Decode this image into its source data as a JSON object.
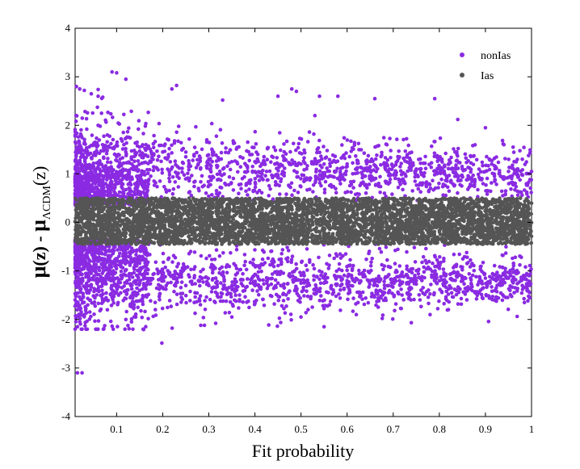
{
  "chart_data": {
    "type": "scatter",
    "title": "",
    "xlabel": "Fit probability",
    "ylabel": {
      "mu": "μ",
      "z1": "(z) - ",
      "mu2": "μ",
      "sub": "ΛCDM",
      "z2": "(z)"
    },
    "xlim": [
      0.01,
      1.0
    ],
    "ylim": [
      -4,
      4
    ],
    "xticks": [
      0.1,
      0.2,
      0.3,
      0.4,
      0.5,
      0.6,
      0.7,
      0.8,
      0.9,
      1
    ],
    "xtick_labels": [
      "0.1",
      "0.2",
      "0.3",
      "0.4",
      "0.5",
      "0.6",
      "0.7",
      "0.8",
      "0.9",
      "1"
    ],
    "yticks": [
      -4,
      -3,
      -2,
      -1,
      0,
      1,
      2,
      3,
      4
    ],
    "ytick_labels": [
      "-4",
      "-3",
      "-2",
      "-1",
      "0",
      "1",
      "2",
      "3",
      "4"
    ],
    "grid": false,
    "legend_position": "top-right",
    "series": [
      {
        "name": "nonIas",
        "color": "#8a2be2",
        "description_of_distribution": "Dense cluster at low fit probability (0.01–0.15) spanning roughly -2 to +2.8; bimodal bands around ±1.2 across all x; sparse outliers up to ~3.1 and down to ~-3.1",
        "points": [
          [
            0.015,
            -3.1
          ],
          [
            0.025,
            -3.1
          ],
          [
            0.09,
            3.1
          ],
          [
            0.1,
            3.08
          ],
          [
            0.12,
            2.95
          ],
          [
            0.02,
            2.75
          ],
          [
            0.03,
            2.72
          ],
          [
            0.045,
            2.65
          ],
          [
            0.06,
            2.6
          ],
          [
            0.07,
            2.58
          ],
          [
            0.23,
            2.82
          ],
          [
            0.22,
            2.75
          ],
          [
            0.33,
            2.52
          ],
          [
            0.45,
            2.6
          ],
          [
            0.48,
            2.75
          ],
          [
            0.49,
            2.7
          ],
          [
            0.53,
            2.2
          ],
          [
            0.54,
            2.6
          ],
          [
            0.58,
            2.6
          ],
          [
            0.66,
            2.55
          ],
          [
            0.79,
            2.55
          ],
          [
            0.84,
            2.12
          ],
          [
            0.9,
            1.95
          ],
          [
            0.94,
            1.6
          ],
          [
            0.96,
            1.55
          ],
          [
            0.98,
            1.3
          ],
          [
            1.0,
            1.05
          ],
          [
            0.995,
            -1.1
          ],
          [
            0.98,
            -1.3
          ],
          [
            0.55,
            -2.15
          ],
          [
            0.015,
            -2.15
          ],
          [
            0.02,
            -2.05
          ],
          [
            0.12,
            -2.0
          ],
          [
            0.35,
            -1.95
          ],
          [
            0.5,
            -1.95
          ],
          [
            0.62,
            -1.9
          ],
          [
            0.78,
            -1.9
          ],
          [
            0.92,
            -1.6
          ],
          [
            0.06,
            2.0
          ],
          [
            0.08,
            1.8
          ],
          [
            0.1,
            1.6
          ],
          [
            0.15,
            1.55
          ],
          [
            0.2,
            1.45
          ],
          [
            0.25,
            1.35
          ],
          [
            0.3,
            1.3
          ],
          [
            0.35,
            1.25
          ],
          [
            0.4,
            1.25
          ],
          [
            0.45,
            1.2
          ],
          [
            0.5,
            1.2
          ],
          [
            0.55,
            1.2
          ],
          [
            0.6,
            1.15
          ],
          [
            0.65,
            1.15
          ],
          [
            0.7,
            1.15
          ],
          [
            0.75,
            1.1
          ],
          [
            0.8,
            1.1
          ],
          [
            0.85,
            1.1
          ],
          [
            0.9,
            1.05
          ],
          [
            0.95,
            1.05
          ],
          [
            0.06,
            -1.4
          ],
          [
            0.1,
            -1.45
          ],
          [
            0.15,
            -1.4
          ],
          [
            0.2,
            -1.35
          ],
          [
            0.25,
            -1.3
          ],
          [
            0.3,
            -1.3
          ],
          [
            0.35,
            -1.3
          ],
          [
            0.4,
            -1.3
          ],
          [
            0.45,
            -1.25
          ],
          [
            0.5,
            -1.25
          ],
          [
            0.55,
            -1.25
          ],
          [
            0.6,
            -1.2
          ],
          [
            0.65,
            -1.2
          ],
          [
            0.7,
            -1.2
          ],
          [
            0.75,
            -1.2
          ],
          [
            0.8,
            -1.2
          ],
          [
            0.85,
            -1.15
          ],
          [
            0.9,
            -1.15
          ],
          [
            0.95,
            -1.15
          ]
        ]
      },
      {
        "name": "Ias",
        "color": "#555555",
        "description_of_distribution": "Uniform dense band across the full x range (0.01–1.0) centred on 0, spanning approximately -0.45 to +0.5",
        "band": {
          "x_range": [
            0.01,
            1.0
          ],
          "y_range": [
            -0.45,
            0.5
          ]
        }
      }
    ]
  }
}
